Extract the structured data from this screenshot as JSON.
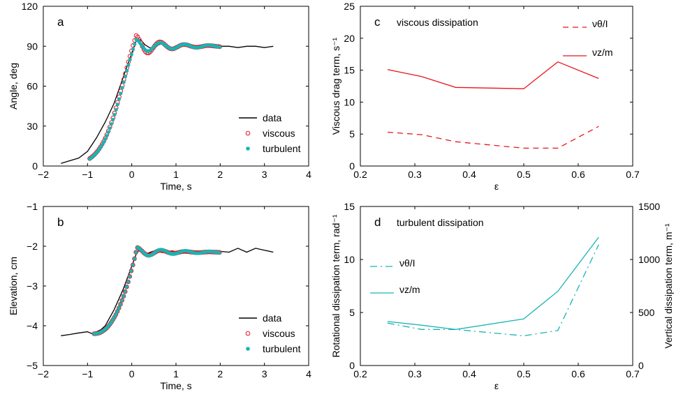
{
  "colors": {
    "data": "#000000",
    "viscous": "#e8141e",
    "turbulent": "#1bb3b3"
  },
  "chart_data": [
    {
      "id": "a",
      "type": "line",
      "panel_label": "a",
      "xlabel": "Time, s",
      "ylabel": "Angle, deg",
      "xlim": [
        -2,
        4
      ],
      "ylim": [
        0,
        120
      ],
      "xticks": [
        -2,
        -1,
        0,
        1,
        2,
        3,
        4
      ],
      "yticks": [
        0,
        30,
        60,
        90,
        120
      ],
      "legend": {
        "placement": "lower-right",
        "entries": [
          "data",
          "viscous",
          "turbulent"
        ]
      },
      "series": [
        {
          "name": "data",
          "style": "line",
          "color": "#000000",
          "x": [
            -1.6,
            -1.4,
            -1.2,
            -1.0,
            -0.8,
            -0.6,
            -0.4,
            -0.2,
            0.0,
            0.1,
            0.2,
            0.3,
            0.4,
            0.5,
            0.6,
            0.7,
            0.8,
            0.9,
            1.0,
            1.1,
            1.2,
            1.4,
            1.6,
            1.8,
            2.0,
            2.2,
            2.4,
            2.6,
            2.8,
            3.0,
            3.2
          ],
          "y": [
            2,
            4,
            6,
            11,
            21,
            33,
            47,
            66,
            85,
            94,
            95,
            91,
            89,
            88,
            91,
            92,
            90,
            89,
            90,
            91,
            90,
            90,
            91,
            90,
            90,
            90,
            89,
            90,
            90,
            89,
            90
          ]
        },
        {
          "name": "viscous",
          "style": "circles",
          "color": "#e8141e",
          "fn": "damped",
          "params": [
            0.1,
            98
          ],
          "x0": -0.95,
          "x1": 2.0,
          "dx": 0.035,
          "osc": [
            90,
            9,
            0.55,
            0.6
          ]
        },
        {
          "name": "turbulent",
          "style": "dots",
          "color": "#1bb3b3",
          "fn": "damped",
          "params": [
            0.1,
            95
          ],
          "x0": -0.95,
          "x1": 2.0,
          "dx": 0.035,
          "osc": [
            90,
            6,
            0.55,
            0.9
          ]
        }
      ]
    },
    {
      "id": "b",
      "type": "line",
      "panel_label": "b",
      "xlabel": "Time, s",
      "ylabel": "Elevation, cm",
      "xlim": [
        -2,
        4
      ],
      "ylim": [
        -5,
        -1
      ],
      "xticks": [
        -2,
        -1,
        0,
        1,
        2,
        3,
        4
      ],
      "yticks": [
        -5,
        -4,
        -3,
        -2,
        -1
      ],
      "legend": {
        "placement": "lower-right",
        "entries": [
          "data",
          "viscous",
          "turbulent"
        ]
      },
      "series": [
        {
          "name": "data",
          "style": "line",
          "color": "#000000",
          "x": [
            -1.6,
            -1.4,
            -1.2,
            -1.0,
            -0.9,
            -0.8,
            -0.7,
            -0.6,
            -0.4,
            -0.2,
            0.0,
            0.1,
            0.2,
            0.3,
            0.5,
            0.7,
            0.9,
            1.2,
            1.5,
            1.8,
            2.0,
            2.2,
            2.4,
            2.6,
            2.8,
            3.0,
            3.2
          ],
          "y": [
            -4.25,
            -4.22,
            -4.18,
            -4.15,
            -4.2,
            -4.15,
            -4.1,
            -4.0,
            -3.6,
            -3.1,
            -2.5,
            -2.2,
            -2.05,
            -2.2,
            -2.12,
            -2.16,
            -2.12,
            -2.16,
            -2.12,
            -2.15,
            -2.13,
            -2.15,
            -2.05,
            -2.15,
            -2.05,
            -2.1,
            -2.15
          ]
        },
        {
          "name": "viscous",
          "style": "circles",
          "color": "#e8141e",
          "fn": "elev",
          "params": [
            -4.2,
            -2.15
          ],
          "x0": -0.85,
          "x1": 2.0,
          "dx": 0.035,
          "osc": [
            0,
            0.13,
            0.55,
            0.6
          ]
        },
        {
          "name": "turbulent",
          "style": "dots",
          "color": "#1bb3b3",
          "fn": "elev",
          "params": [
            -4.2,
            -2.15
          ],
          "x0": -0.85,
          "x1": 2.0,
          "dx": 0.035,
          "osc": [
            0,
            0.06,
            0.55,
            0.9
          ]
        }
      ]
    },
    {
      "id": "c",
      "type": "line",
      "panel_label": "c",
      "title": "viscous dissipation",
      "xlabel": "ε",
      "ylabel": "Viscous drag term, s⁻¹",
      "xlim": [
        0.2,
        0.7
      ],
      "ylim": [
        0,
        25
      ],
      "xticks": [
        0.2,
        0.3,
        0.4,
        0.5,
        0.6,
        0.7
      ],
      "yticks": [
        0,
        5,
        10,
        15,
        20,
        25
      ],
      "legend": {
        "placement": "top-right",
        "entries": [
          "νθ/I",
          "νz/m"
        ]
      },
      "series": [
        {
          "name": "νθ/I",
          "style": "dashed",
          "color": "#e8141e",
          "x": [
            0.25,
            0.3125,
            0.375,
            0.5,
            0.5625,
            0.6375
          ],
          "y": [
            5.3,
            4.9,
            3.8,
            2.8,
            2.8,
            6.2
          ]
        },
        {
          "name": "νz/m",
          "style": "solid",
          "color": "#e8141e",
          "x": [
            0.25,
            0.3125,
            0.375,
            0.5,
            0.5625,
            0.6375
          ],
          "y": [
            15.1,
            14.0,
            12.3,
            12.1,
            16.3,
            13.7
          ]
        }
      ]
    },
    {
      "id": "d",
      "type": "line",
      "panel_label": "d",
      "title": "turbulent dissipation",
      "xlabel": "ε",
      "ylabel": "Rotational dissipation term, rad⁻¹",
      "y2label": "Vertical dissipation term, m⁻¹",
      "xlim": [
        0.2,
        0.7
      ],
      "ylim": [
        0,
        15
      ],
      "y2lim": [
        0,
        1500
      ],
      "xticks": [
        0.2,
        0.3,
        0.4,
        0.5,
        0.6,
        0.7
      ],
      "yticks": [
        0,
        5,
        10,
        15
      ],
      "y2ticks": [
        0,
        500,
        1000,
        1500
      ],
      "legend": {
        "placement": "left",
        "entries": [
          "νθ/I",
          "νz/m"
        ]
      },
      "series": [
        {
          "name": "νθ/I",
          "style": "dashdot",
          "color": "#1bb3b3",
          "axis": "left",
          "x": [
            0.25,
            0.3125,
            0.375,
            0.5,
            0.5625,
            0.6375
          ],
          "y": [
            4.0,
            3.4,
            3.4,
            2.8,
            3.3,
            11.4
          ]
        },
        {
          "name": "νz/m",
          "style": "solid",
          "color": "#1bb3b3",
          "axis": "right",
          "x": [
            0.25,
            0.3125,
            0.375,
            0.5,
            0.5625,
            0.6375
          ],
          "y": [
            415,
            380,
            340,
            440,
            700,
            1210
          ]
        }
      ]
    }
  ]
}
